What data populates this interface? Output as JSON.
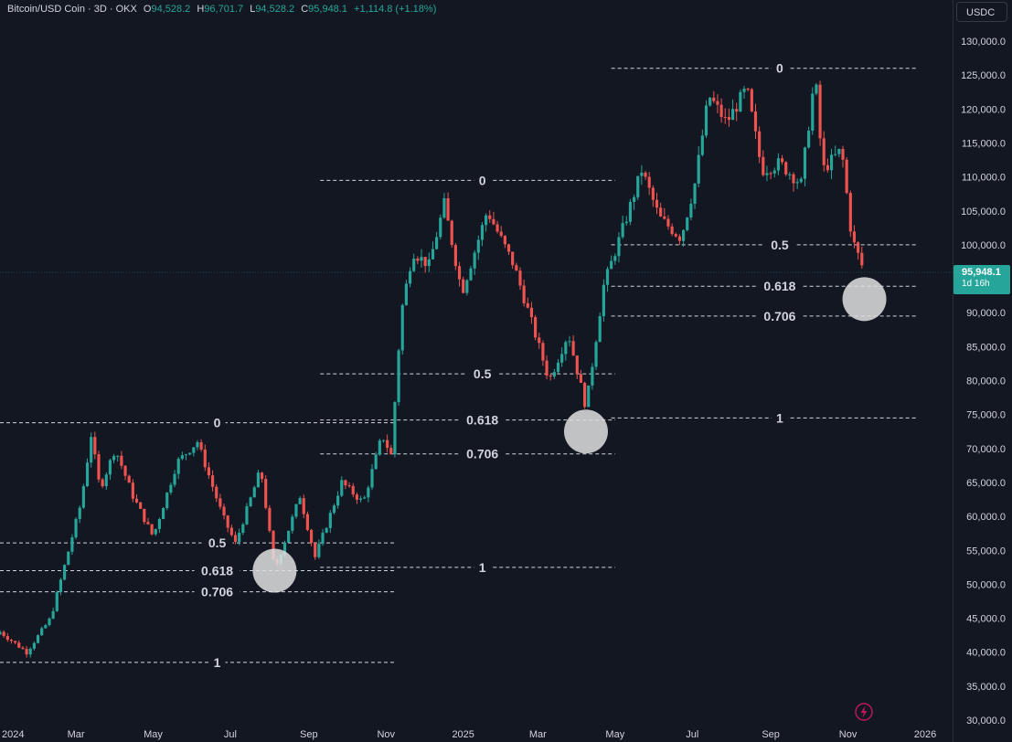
{
  "legend": {
    "symbol": "Bitcoin/USD Coin · 3D · OKX",
    "o_key": "O",
    "o_val": "94,528.2",
    "h_key": "H",
    "h_val": "96,701.7",
    "l_key": "L",
    "l_val": "94,528.2",
    "c_key": "C",
    "c_val": "95,948.1",
    "change": "+1,114.8 (+1.18%)"
  },
  "currency_label": "USDC",
  "last_price": {
    "value": "95,948.1",
    "countdown": "1d 16h"
  },
  "icons": {
    "flash": "lightning-icon"
  },
  "colors": {
    "up": "#26a69a",
    "down": "#ef5350",
    "background": "#131722",
    "price_tag": "#26a69a"
  },
  "chart_data": {
    "type": "candlestick",
    "x_ticks": [
      "2024",
      "Mar",
      "May",
      "Jul",
      "Sep",
      "Nov",
      "2025",
      "Mar",
      "May",
      "Jul",
      "Sep",
      "Nov",
      "2026"
    ],
    "y_ticks": [
      "30,000.0",
      "35,000.0",
      "40,000.0",
      "45,000.0",
      "50,000.0",
      "55,000.0",
      "60,000.0",
      "65,000.0",
      "70,000.0",
      "75,000.0",
      "80,000.0",
      "85,000.0",
      "90,000.0",
      "95,000.0",
      "100,000.0",
      "105,000.0",
      "110,000.0",
      "115,000.0",
      "120,000.0",
      "125,000.0",
      "130,000.0"
    ],
    "ylim": [
      30000,
      131000
    ],
    "price_waypoints": [
      [
        "2024-01-01",
        43000
      ],
      [
        "2024-01-22",
        40000
      ],
      [
        "2024-02-10",
        45000
      ],
      [
        "2024-02-20",
        52000
      ],
      [
        "2024-03-05",
        62000
      ],
      [
        "2024-03-13",
        72000
      ],
      [
        "2024-03-20",
        64000
      ],
      [
        "2024-04-01",
        70000
      ],
      [
        "2024-04-15",
        63000
      ],
      [
        "2024-05-01",
        57000
      ],
      [
        "2024-05-20",
        68000
      ],
      [
        "2024-06-05",
        71000
      ],
      [
        "2024-06-25",
        60000
      ],
      [
        "2024-07-05",
        56000
      ],
      [
        "2024-07-25",
        67000
      ],
      [
        "2024-08-05",
        52000
      ],
      [
        "2024-08-25",
        63000
      ],
      [
        "2024-09-06",
        54000
      ],
      [
        "2024-09-27",
        65000
      ],
      [
        "2024-10-14",
        62000
      ],
      [
        "2024-10-29",
        72000
      ],
      [
        "2024-11-05",
        69000
      ],
      [
        "2024-11-13",
        90000
      ],
      [
        "2024-11-22",
        99000
      ],
      [
        "2024-12-05",
        97000
      ],
      [
        "2024-12-17",
        106000
      ],
      [
        "2024-12-31",
        93000
      ],
      [
        "2025-01-20",
        105000
      ],
      [
        "2025-02-10",
        97000
      ],
      [
        "2025-02-25",
        88000
      ],
      [
        "2025-03-10",
        80000
      ],
      [
        "2025-03-25",
        87000
      ],
      [
        "2025-04-08",
        76000
      ],
      [
        "2025-04-22",
        94000
      ],
      [
        "2025-05-10",
        104000
      ],
      [
        "2025-05-22",
        111000
      ],
      [
        "2025-06-05",
        104000
      ],
      [
        "2025-06-22",
        101000
      ],
      [
        "2025-07-03",
        109000
      ],
      [
        "2025-07-14",
        122000
      ],
      [
        "2025-07-28",
        118000
      ],
      [
        "2025-08-13",
        123000
      ],
      [
        "2025-08-25",
        111000
      ],
      [
        "2025-09-08",
        112000
      ],
      [
        "2025-09-25",
        109000
      ],
      [
        "2025-10-06",
        125000
      ],
      [
        "2025-10-12",
        111000
      ],
      [
        "2025-10-27",
        114000
      ],
      [
        "2025-11-04",
        101000
      ],
      [
        "2025-11-14",
        95948
      ]
    ],
    "fib_retracements": [
      {
        "levels": [
          {
            "label": "0",
            "value": 73800
          },
          {
            "label": "0.5",
            "value": 56100
          },
          {
            "label": "0.618",
            "value": 52000
          },
          {
            "label": "0.706",
            "value": 48900
          },
          {
            "label": "1",
            "value": 38500
          }
        ]
      },
      {
        "levels": [
          {
            "label": "0",
            "value": 109500
          },
          {
            "label": "0.5",
            "value": 81000
          },
          {
            "label": "0.618",
            "value": 74200
          },
          {
            "label": "0.706",
            "value": 69200
          },
          {
            "label": "1",
            "value": 52500
          }
        ]
      },
      {
        "levels": [
          {
            "label": "0",
            "value": 126000
          },
          {
            "label": "0.5",
            "value": 100000
          },
          {
            "label": "0.618",
            "value": 93900
          },
          {
            "label": "0.706",
            "value": 89500
          },
          {
            "label": "1",
            "value": 74500
          }
        ]
      }
    ],
    "highlight_markers": [
      {
        "date": "2024-08-05",
        "value": 52000
      },
      {
        "date": "2025-04-08",
        "value": 72500
      },
      {
        "date": "2025-11-14",
        "value": 92000
      }
    ]
  }
}
